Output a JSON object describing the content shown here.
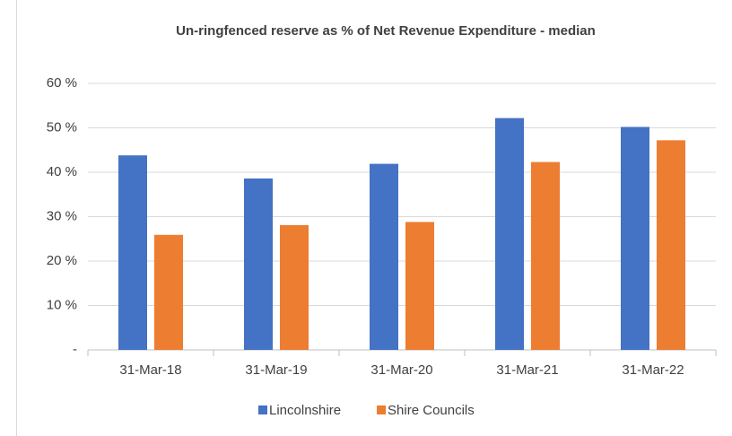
{
  "chart_data": {
    "type": "bar",
    "title": "Un-ringfenced reserve as % of Net Revenue Expenditure - median",
    "categories": [
      "31-Mar-18",
      "31-Mar-19",
      "31-Mar-20",
      "31-Mar-21",
      "31-Mar-22"
    ],
    "series": [
      {
        "name": "Lincolnshire",
        "color": "#4472c4",
        "values": [
          43.8,
          38.6,
          41.9,
          52.2,
          50.2
        ]
      },
      {
        "name": "Shire Councils",
        "color": "#ed7d31",
        "values": [
          25.9,
          28.1,
          28.8,
          42.3,
          47.2
        ]
      }
    ],
    "ylim": [
      0,
      60
    ],
    "yticks": [
      {
        "value": 0,
        "label": "-"
      },
      {
        "value": 10,
        "label": "10 %"
      },
      {
        "value": 20,
        "label": "20 %"
      },
      {
        "value": 30,
        "label": "30 %"
      },
      {
        "value": 40,
        "label": "40 %"
      },
      {
        "value": 50,
        "label": "50 %"
      },
      {
        "value": 60,
        "label": "60 %"
      }
    ],
    "grid": true,
    "legend": "bottom"
  }
}
